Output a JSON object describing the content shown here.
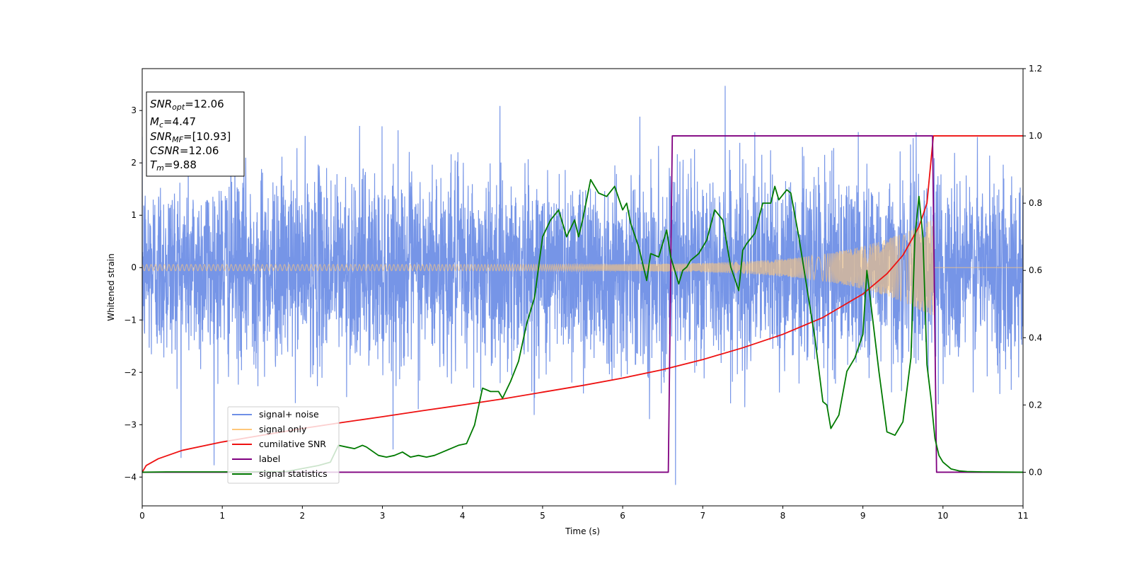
{
  "chart_data": {
    "type": "line",
    "xlabel": "Time (s)",
    "ylabel": "Whitened strain",
    "xlim": [
      0,
      11
    ],
    "ylim_left": [
      -4.55,
      3.8
    ],
    "ylim_right": [
      -0.1,
      1.2
    ],
    "x_ticks": [
      "0",
      "1",
      "2",
      "3",
      "4",
      "5",
      "6",
      "7",
      "8",
      "9",
      "10",
      "11"
    ],
    "y_ticks_left": [
      "3",
      "2",
      "1",
      "0",
      "−1",
      "−2",
      "−3",
      "−4"
    ],
    "y_ticks_right": [
      "1.2",
      "1.0",
      "0.8",
      "0.6",
      "0.4",
      "0.2",
      "0.0"
    ],
    "grid": false,
    "legend_position": "lower-left",
    "info_box": {
      "snr_opt_sym": "SNR",
      "snr_opt_sub": "opt",
      "snr_opt_val": "=12.06",
      "mc_sym": "M",
      "mc_sub": "c",
      "mc_val": "=4.47",
      "snr_mf_sym": "SNR",
      "snr_mf_sub": "MF",
      "snr_mf_val": "=[10.93]",
      "csnr_sym": "CSNR",
      "csnr_val": "=12.06",
      "tm_sym": "T",
      "tm_sub": "m",
      "tm_val": "=9.88"
    },
    "series": [
      {
        "name": "signal+ noise",
        "color": "#6f8fe6",
        "axis": "left",
        "sample_rate_hz": 400,
        "amplitude_std": 0.9,
        "duration_s": 11,
        "extreme_values": {
          "max": 3.47,
          "min": -4.15
        }
      },
      {
        "name": "signal only",
        "color": "#ffc87a",
        "axis": "left",
        "chirp_start_s": 0,
        "chirp_end_s": 9.88,
        "amplitude_start": 0.06,
        "amplitude_end": 0.95
      },
      {
        "name": "cumilative SNR",
        "color": "#ee1111",
        "axis": "right",
        "x": [
          0,
          0.05,
          0.2,
          0.5,
          1,
          1.5,
          2,
          2.5,
          3,
          3.5,
          4,
          4.5,
          5,
          5.5,
          6,
          6.5,
          7,
          7.5,
          8,
          8.5,
          9,
          9.3,
          9.5,
          9.7,
          9.8,
          9.88,
          11
        ],
        "y": [
          0.0,
          0.02,
          0.04,
          0.065,
          0.09,
          0.11,
          0.13,
          0.148,
          0.165,
          0.183,
          0.2,
          0.218,
          0.238,
          0.258,
          0.28,
          0.305,
          0.335,
          0.37,
          0.41,
          0.46,
          0.53,
          0.59,
          0.645,
          0.73,
          0.8,
          1.0,
          1.0
        ]
      },
      {
        "name": "label",
        "color": "#800080",
        "axis": "right",
        "x": [
          0,
          6.57,
          6.62,
          9.87,
          9.92,
          11
        ],
        "y": [
          0,
          0,
          1,
          1,
          0,
          0
        ]
      },
      {
        "name": "signal statistics",
        "color": "#007a00",
        "axis": "right",
        "x": [
          0,
          0.3,
          1,
          1.8,
          2.2,
          2.35,
          2.45,
          2.55,
          2.65,
          2.75,
          2.8,
          2.95,
          3.05,
          3.15,
          3.25,
          3.35,
          3.45,
          3.55,
          3.65,
          3.75,
          3.85,
          3.95,
          4.05,
          4.15,
          4.25,
          4.35,
          4.45,
          4.5,
          4.6,
          4.7,
          4.8,
          4.9,
          5.0,
          5.1,
          5.2,
          5.3,
          5.4,
          5.45,
          5.5,
          5.6,
          5.7,
          5.8,
          5.9,
          6.0,
          6.05,
          6.1,
          6.2,
          6.3,
          6.35,
          6.45,
          6.55,
          6.6,
          6.7,
          6.75,
          6.8,
          6.85,
          6.9,
          6.95,
          7.05,
          7.15,
          7.25,
          7.35,
          7.45,
          7.5,
          7.55,
          7.65,
          7.75,
          7.85,
          7.9,
          7.95,
          8.05,
          8.1,
          8.2,
          8.3,
          8.4,
          8.5,
          8.55,
          8.6,
          8.7,
          8.8,
          8.9,
          9.0,
          9.05,
          9.1,
          9.2,
          9.3,
          9.4,
          9.5,
          9.6,
          9.65,
          9.7,
          9.75,
          9.8,
          9.85,
          9.9,
          9.95,
          10.0,
          10.1,
          10.2,
          10.3,
          10.5,
          11
        ],
        "y": [
          0.0,
          0.001,
          0.001,
          0.002,
          0.02,
          0.03,
          0.08,
          0.075,
          0.07,
          0.08,
          0.075,
          0.05,
          0.045,
          0.05,
          0.06,
          0.045,
          0.05,
          0.045,
          0.05,
          0.06,
          0.07,
          0.08,
          0.085,
          0.14,
          0.25,
          0.24,
          0.24,
          0.22,
          0.27,
          0.33,
          0.44,
          0.52,
          0.7,
          0.75,
          0.78,
          0.7,
          0.75,
          0.7,
          0.75,
          0.87,
          0.83,
          0.82,
          0.85,
          0.78,
          0.8,
          0.74,
          0.67,
          0.57,
          0.65,
          0.64,
          0.72,
          0.64,
          0.56,
          0.6,
          0.61,
          0.63,
          0.64,
          0.65,
          0.69,
          0.78,
          0.75,
          0.61,
          0.54,
          0.66,
          0.68,
          0.71,
          0.8,
          0.8,
          0.85,
          0.81,
          0.84,
          0.83,
          0.7,
          0.55,
          0.4,
          0.21,
          0.2,
          0.13,
          0.17,
          0.3,
          0.34,
          0.41,
          0.6,
          0.5,
          0.3,
          0.12,
          0.11,
          0.15,
          0.34,
          0.7,
          0.82,
          0.7,
          0.32,
          0.22,
          0.1,
          0.05,
          0.03,
          0.01,
          0.004,
          0.002,
          0.001,
          0.0
        ]
      }
    ]
  }
}
